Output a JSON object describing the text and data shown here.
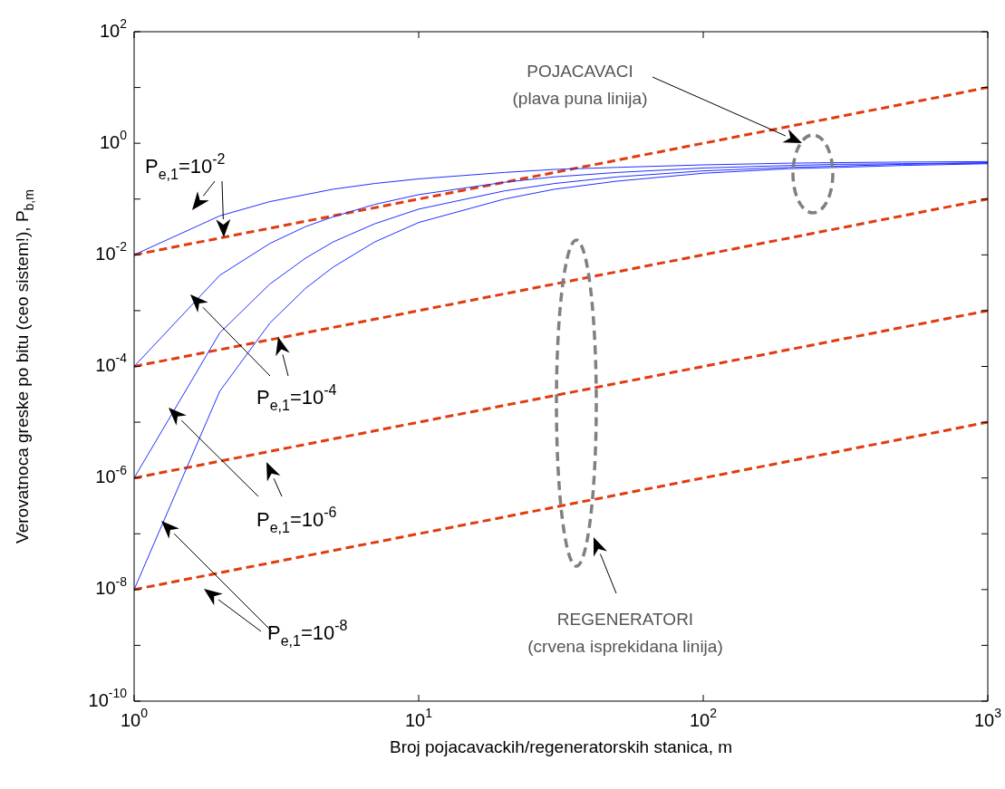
{
  "chart_data": {
    "type": "line",
    "xlabel": "Broj pojacavackih/regeneratorskih stanica, m",
    "ylabel": "Verovatnoca greske po bitu (ceo sistem!), P$_{b,m}$",
    "log": "xy",
    "grid": false,
    "legend": false,
    "marker": "none",
    "xlim": [
      1,
      1000
    ],
    "xticks": [
      {
        "value": 1,
        "label": "10$^{0}$"
      },
      {
        "value": 10,
        "label": "10$^{1}$"
      },
      {
        "value": 100,
        "label": "10$^{2}$"
      },
      {
        "value": 1000,
        "label": "10$^{3}$"
      }
    ],
    "ylim": [
      1e-10,
      100
    ],
    "yticks": [
      {
        "value": 1e-10,
        "label": "10$^{-10}$"
      },
      {
        "value": 1e-09,
        "label": null
      },
      {
        "value": 1e-08,
        "label": "10$^{-8}$"
      },
      {
        "value": 1e-07,
        "label": null
      },
      {
        "value": 1e-06,
        "label": "10$^{-6}$"
      },
      {
        "value": 1e-05,
        "label": null
      },
      {
        "value": 0.0001,
        "label": "10$^{-4}$"
      },
      {
        "value": 0.001,
        "label": null
      },
      {
        "value": 0.01,
        "label": "10$^{-2}$"
      },
      {
        "value": 0.1,
        "label": null
      },
      {
        "value": 1,
        "label": "10$^{0}$"
      },
      {
        "value": 10,
        "label": null
      },
      {
        "value": 100,
        "label": "10$^{2}$"
      }
    ],
    "series": [
      {
        "color": "#e03c10",
        "line_style": "dashed",
        "x": [
          1,
          10,
          100,
          1000
        ],
        "values": [
          0.01,
          0.1,
          1,
          10
        ]
      },
      {
        "color": "#e03c10",
        "line_style": "dashed",
        "x": [
          1,
          10,
          100,
          1000
        ],
        "values": [
          0.0001,
          0.001,
          0.01,
          0.1
        ]
      },
      {
        "color": "#e03c10",
        "line_style": "dashed",
        "x": [
          1,
          10,
          100,
          1000
        ],
        "values": [
          1e-06,
          1e-05,
          0.0001,
          0.001
        ]
      },
      {
        "color": "#e03c10",
        "line_style": "dashed",
        "x": [
          1,
          10,
          100,
          1000
        ],
        "values": [
          1e-08,
          1e-07,
          1e-06,
          1e-05
        ]
      },
      {
        "color": "#2030ff",
        "line_style": "solid",
        "x": [
          1,
          2,
          3,
          4,
          5,
          7,
          10,
          20,
          30,
          50,
          100,
          200,
          300,
          500,
          1000
        ],
        "values": [
          0.01,
          0.05,
          0.09,
          0.12,
          0.15,
          0.19,
          0.23,
          0.3,
          0.34,
          0.37,
          0.41,
          0.44,
          0.45,
          0.46,
          0.47
        ]
      },
      {
        "color": "#2030ff",
        "line_style": "solid",
        "x": [
          1,
          2,
          3,
          4,
          5,
          7,
          10,
          20,
          30,
          50,
          100,
          200,
          300,
          500,
          1000
        ],
        "values": [
          0.0001,
          0.0043,
          0.016,
          0.032,
          0.048,
          0.08,
          0.12,
          0.2,
          0.25,
          0.3,
          0.36,
          0.4,
          0.42,
          0.43,
          0.45
        ]
      },
      {
        "color": "#2030ff",
        "line_style": "solid",
        "x": [
          1,
          2,
          3,
          4,
          5,
          7,
          10,
          20,
          30,
          50,
          100,
          200,
          300,
          500,
          1000
        ],
        "values": [
          1e-06,
          0.0004,
          0.003,
          0.0087,
          0.017,
          0.036,
          0.066,
          0.14,
          0.19,
          0.25,
          0.32,
          0.37,
          0.39,
          0.42,
          0.44
        ]
      },
      {
        "color": "#2030ff",
        "line_style": "solid",
        "x": [
          1,
          2,
          3,
          4,
          5,
          7,
          10,
          20,
          30,
          50,
          100,
          200,
          300,
          500,
          1000
        ],
        "values": [
          1e-08,
          3.6e-05,
          0.0006,
          0.0025,
          0.006,
          0.017,
          0.038,
          0.1,
          0.15,
          0.21,
          0.29,
          0.35,
          0.37,
          0.4,
          0.43
        ]
      }
    ],
    "annotations": [
      "P$_{e,1}$=10$^{-2}$",
      "P$_{e,1}$=10$^{-4}$",
      "P$_{e,1}$=10$^{-6}$",
      "P$_{e,1}$=10$^{-8}$",
      "POJACAVACI",
      "(plava puna linija)",
      "REGENERATORI",
      "(crvena isprekidana linija)"
    ]
  }
}
